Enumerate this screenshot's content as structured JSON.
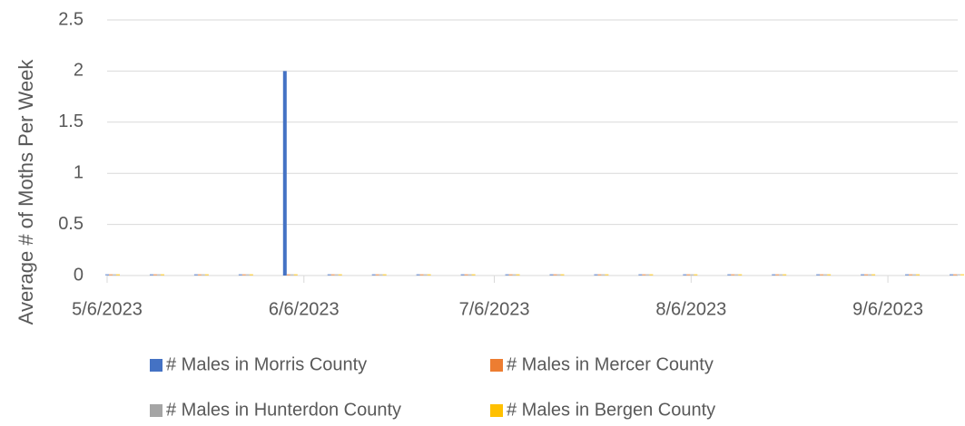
{
  "chart_data": {
    "type": "bar",
    "ylabel": "Average # of Moths Per Week",
    "x": [
      "2023-05-06",
      "2023-05-13",
      "2023-05-20",
      "2023-05-27",
      "2023-06-03",
      "2023-06-10",
      "2023-06-17",
      "2023-06-24",
      "2023-07-01",
      "2023-07-08",
      "2023-07-15",
      "2023-07-22",
      "2023-07-29",
      "2023-08-05",
      "2023-08-12",
      "2023-08-19",
      "2023-08-26",
      "2023-09-02",
      "2023-09-09",
      "2023-09-16"
    ],
    "series": [
      {
        "name": "# Males in Morris County",
        "color": "#4472c4",
        "values": [
          0,
          0,
          0,
          0,
          2,
          0,
          0,
          0,
          0,
          0,
          0,
          0,
          0,
          0,
          0,
          0,
          0,
          0,
          0,
          0
        ]
      },
      {
        "name": "# Males in Mercer County",
        "color": "#ed7d31",
        "values": [
          0,
          0,
          0,
          0,
          0,
          0,
          0,
          0,
          0,
          0,
          0,
          0,
          0,
          0,
          0,
          0,
          0,
          0,
          0,
          0
        ]
      },
      {
        "name": "# Males in Hunterdon County",
        "color": "#a5a5a5",
        "values": [
          0,
          0,
          0,
          0,
          0,
          0,
          0,
          0,
          0,
          0,
          0,
          0,
          0,
          0,
          0,
          0,
          0,
          0,
          0,
          0
        ]
      },
      {
        "name": "# Males in Bergen County",
        "color": "#ffc000",
        "values": [
          0,
          0,
          0,
          0,
          0,
          0,
          0,
          0,
          0,
          0,
          0,
          0,
          0,
          0,
          0,
          0,
          0,
          0,
          0,
          0
        ]
      }
    ],
    "xlim": [
      "2023-05-06",
      "2023-09-17"
    ],
    "xticks": [
      {
        "value": "2023-05-06",
        "label": "5/6/2023"
      },
      {
        "value": "2023-06-06",
        "label": "6/6/2023"
      },
      {
        "value": "2023-07-06",
        "label": "7/6/2023"
      },
      {
        "value": "2023-08-06",
        "label": "8/6/2023"
      },
      {
        "value": "2023-09-06",
        "label": "9/6/2023"
      }
    ],
    "ylim": [
      0,
      2.5
    ],
    "yticks": [
      0,
      0.5,
      1,
      1.5,
      2,
      2.5
    ],
    "grid": true,
    "legend": "bottom"
  }
}
